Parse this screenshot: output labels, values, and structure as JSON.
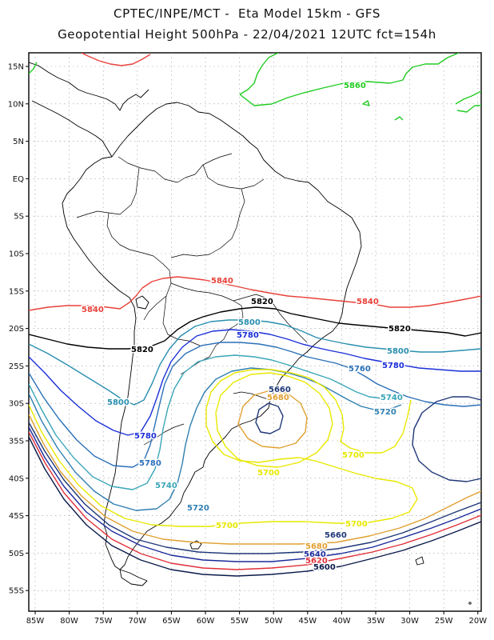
{
  "header": {
    "line1": "CPTEC/INPE/MCT -  Eta Model 15km - GFS",
    "line2": "Geopotential Height 500hPa - 22/04/2021 12UTC fct=154h"
  },
  "axes": {
    "lat_labels": [
      "15N",
      "10N",
      "5N",
      "EQ",
      "5S",
      "10S",
      "15S",
      "20S",
      "25S",
      "30S",
      "35S",
      "40S",
      "45S",
      "50S",
      "55S"
    ],
    "lon_labels": [
      "85W",
      "80W",
      "75W",
      "70W",
      "65W",
      "60W",
      "55W",
      "50W",
      "45W",
      "40W",
      "35W",
      "30W",
      "25W",
      "20W"
    ]
  },
  "colors": {
    "5860": "#22cc22",
    "5840": "#e8413a",
    "5820": "#000000",
    "5800": "#2a8fb0",
    "5780": "#1a2fd8",
    "5760": "#2a6fb8",
    "5740": "#3aa6b8",
    "5720": "#2f7fb0",
    "5700": "#e8e800",
    "5680": "#e0a030",
    "5660": "#203878",
    "5640": "#1a2a9a",
    "5620": "#e0303a",
    "5600": "#0a1a4a"
  },
  "contour_labels": [
    {
      "id": "5860a",
      "text": "5860"
    },
    {
      "id": "5840a",
      "text": "5840"
    },
    {
      "id": "5840b",
      "text": "5840"
    },
    {
      "id": "5840c",
      "text": "5840"
    },
    {
      "id": "5820a",
      "text": "5820"
    },
    {
      "id": "5820b",
      "text": "5820"
    },
    {
      "id": "5820c",
      "text": "5820"
    },
    {
      "id": "5800a",
      "text": "5800"
    },
    {
      "id": "5800b",
      "text": "5800"
    },
    {
      "id": "5800c",
      "text": "5800"
    },
    {
      "id": "5780a",
      "text": "5780"
    },
    {
      "id": "5780b",
      "text": "5780"
    },
    {
      "id": "5780c",
      "text": "5780"
    },
    {
      "id": "5780d",
      "text": "5780"
    },
    {
      "id": "5760a",
      "text": "5760"
    },
    {
      "id": "5740a",
      "text": "5740"
    },
    {
      "id": "5740b",
      "text": "5740"
    },
    {
      "id": "5720a",
      "text": "5720"
    },
    {
      "id": "5720b",
      "text": "5720"
    },
    {
      "id": "5700a",
      "text": "5700"
    },
    {
      "id": "5700b",
      "text": "5700"
    },
    {
      "id": "5700c",
      "text": "5700"
    },
    {
      "id": "5700d",
      "text": "5700"
    },
    {
      "id": "5680a",
      "text": "5680"
    },
    {
      "id": "5680b",
      "text": "5680"
    },
    {
      "id": "5660a",
      "text": "5660"
    },
    {
      "id": "5660b",
      "text": "5660"
    },
    {
      "id": "5640a",
      "text": "5640"
    },
    {
      "id": "5620a",
      "text": "5620"
    },
    {
      "id": "5600a",
      "text": "5600"
    }
  ]
}
